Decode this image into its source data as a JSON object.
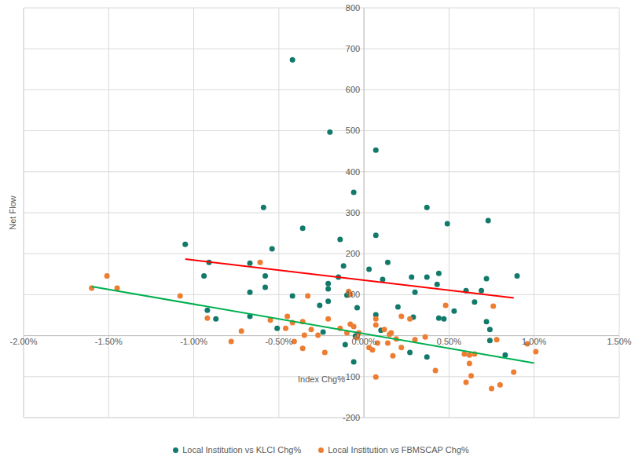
{
  "chart_data": {
    "type": "scatter",
    "x_label": "Index Chg%",
    "y_label": "Net Flow",
    "xlim": [
      -2,
      1.5
    ],
    "ylim": [
      -200,
      800
    ],
    "xticks": [
      {
        "value": -2,
        "label": "-2.00%"
      },
      {
        "value": -1.5,
        "label": "-1.50%"
      },
      {
        "value": -1,
        "label": "-1.00%"
      },
      {
        "value": -0.5,
        "label": "-0.50%"
      },
      {
        "value": 0,
        "label": "0.00%"
      },
      {
        "value": 0.5,
        "label": "0.50%"
      },
      {
        "value": 1,
        "label": "1.00%"
      },
      {
        "value": 1.5,
        "label": "1.50%"
      }
    ],
    "yticks": [
      -200,
      -100,
      0,
      100,
      200,
      300,
      400,
      500,
      600,
      700,
      800
    ],
    "grid": true,
    "legend": "bottom",
    "series": [
      {
        "name": "Local Institution vs KLCI Chg%",
        "color": "#127a6a",
        "marker": "circle",
        "x": [
          -1.05,
          -0.94,
          -0.91,
          -0.92,
          -0.87,
          -0.67,
          -0.67,
          -0.67,
          -0.59,
          -0.58,
          -0.58,
          -0.54,
          -0.51,
          -0.36,
          -0.42,
          -0.42,
          -0.2,
          -0.21,
          -0.21,
          -0.21,
          -0.26,
          -0.24,
          -0.14,
          -0.15,
          -0.12,
          -0.1,
          -0.11,
          -0.06,
          -0.06,
          -0.04,
          -0.05,
          0.03,
          0.07,
          0.07,
          0.07,
          0.1,
          0.11,
          0.14,
          0.2,
          0.28,
          0.29,
          0.27,
          0.3,
          0.37,
          0.37,
          0.37,
          0.43,
          0.44,
          0.44,
          0.47,
          0.49,
          0.53,
          0.6,
          0.65,
          0.69,
          0.72,
          0.74,
          0.73,
          0.72,
          0.74,
          0.83,
          0.9
        ],
        "values": [
          223,
          146,
          179,
          62,
          41,
          177,
          106,
          47,
          313,
          118,
          146,
          212,
          18,
          262,
          97,
          673,
          497,
          127,
          114,
          84,
          74,
          9,
          235,
          143,
          170,
          99,
          -22,
          350,
          -64,
          68,
          -1,
          162,
          453,
          245,
          51,
          13,
          137,
          179,
          70,
          143,
          45,
          -41,
          106,
          313,
          143,
          -52,
          125,
          152,
          43,
          41,
          273,
          60,
          110,
          82,
          110,
          34,
          -12,
          281,
          139,
          15,
          -47,
          146
        ]
      },
      {
        "name": "Local Institution vs FBMSCAP Chg%",
        "color": "#ed7d31",
        "marker": "circle",
        "x": [
          -1.6,
          -1.51,
          -1.45,
          -1.08,
          -0.92,
          -0.78,
          -0.72,
          -0.61,
          -0.55,
          -0.46,
          -0.45,
          -0.42,
          -0.41,
          -0.36,
          -0.36,
          -0.33,
          -0.35,
          -0.31,
          -0.27,
          -0.23,
          -0.21,
          -0.14,
          -0.1,
          -0.09,
          -0.08,
          -0.08,
          -0.06,
          -0.04,
          -0.03,
          0.03,
          0.05,
          0.07,
          0.07,
          0.07,
          0.08,
          0.12,
          0.14,
          0.15,
          0.16,
          0.17,
          0.19,
          0.22,
          0.22,
          0.27,
          0.3,
          0.36,
          0.42,
          0.48,
          0.59,
          0.6,
          0.62,
          0.62,
          0.63,
          0.65,
          0.78,
          0.75,
          0.76,
          0.8,
          0.88,
          0.96,
          1.01
        ],
        "values": [
          116,
          146,
          116,
          97,
          43,
          -14,
          11,
          179,
          38,
          18,
          47,
          32,
          -14,
          34,
          -31,
          97,
          1,
          15,
          1,
          -41,
          41,
          18,
          7,
          108,
          101,
          28,
          22,
          -5,
          7,
          -29,
          -35,
          41,
          26,
          -101,
          -18,
          15,
          -18,
          3,
          7,
          -49,
          -8,
          47,
          -29,
          41,
          -10,
          -3,
          -85,
          74,
          -45,
          -114,
          -68,
          -47,
          -98,
          -45,
          -10,
          -129,
          72,
          -120,
          -89,
          -20,
          -39
        ]
      },
      {
        "type": "line",
        "color": "#ff0000",
        "line_style": "solid",
        "x": [
          -1.05,
          0.88
        ],
        "values": [
          187,
          92
        ]
      },
      {
        "type": "line",
        "color": "#00b050",
        "line_style": "solid",
        "x": [
          -1.6,
          1.0
        ],
        "values": [
          120,
          -67
        ]
      }
    ]
  }
}
